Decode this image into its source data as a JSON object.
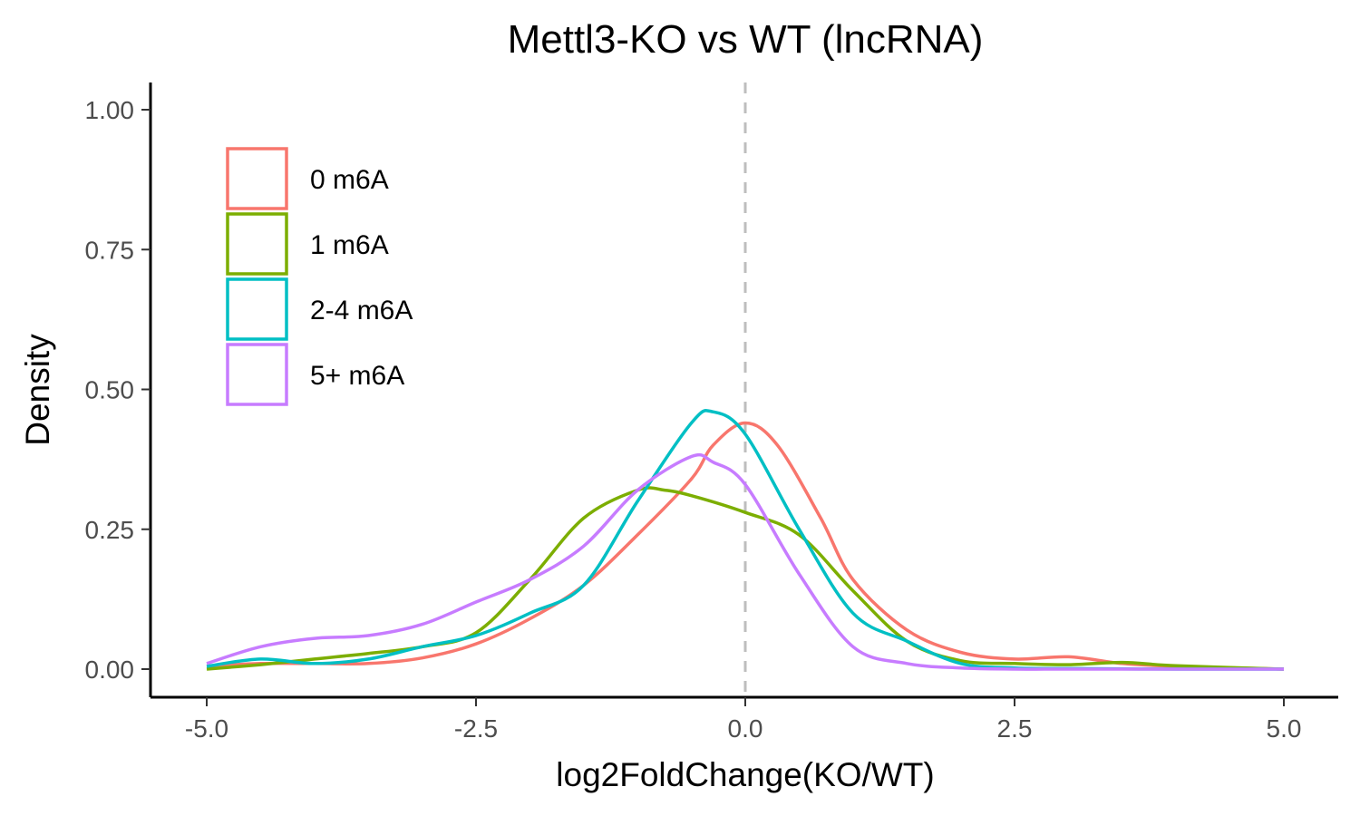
{
  "chart_data": {
    "type": "line",
    "subtype": "density",
    "title": "Mettl3-KO vs WT (lncRNA)",
    "xlabel": "log2FoldChange(KO/WT)",
    "ylabel": "Density",
    "xlim": [
      -5.0,
      5.0
    ],
    "ylim": [
      0,
      1.0
    ],
    "x_ticks": [
      -5.0,
      -2.5,
      0.0,
      2.5,
      5.0
    ],
    "x_tick_labels": [
      "-5.0",
      "-2.5",
      "0.0",
      "2.5",
      "5.0"
    ],
    "y_ticks": [
      0,
      0.25,
      0.5,
      0.75,
      1.0
    ],
    "y_tick_labels": [
      "0.00",
      "0.25",
      "0.50",
      "0.75",
      "1.00"
    ],
    "grid": false,
    "legend_position": "top-left",
    "reference_line": {
      "x": 0.0,
      "style": "dashed",
      "color": "#bebebe"
    },
    "series": [
      {
        "name": "0 m6A",
        "color": "#F8766D",
        "x": [
          -5.0,
          -4.5,
          -4.0,
          -3.5,
          -3.0,
          -2.5,
          -2.0,
          -1.5,
          -1.0,
          -0.5,
          -0.3,
          0.0,
          0.3,
          0.7,
          1.0,
          1.5,
          2.0,
          2.5,
          3.0,
          3.5,
          4.0,
          5.0
        ],
        "y": [
          0.005,
          0.01,
          0.01,
          0.01,
          0.02,
          0.045,
          0.09,
          0.15,
          0.24,
          0.34,
          0.4,
          0.44,
          0.4,
          0.27,
          0.16,
          0.07,
          0.03,
          0.018,
          0.022,
          0.01,
          0.005,
          0.0
        ]
      },
      {
        "name": "1 m6A",
        "color": "#7CAE00",
        "x": [
          -5.0,
          -4.5,
          -4.0,
          -3.5,
          -3.0,
          -2.5,
          -2.0,
          -1.5,
          -1.0,
          -0.75,
          -0.5,
          0.0,
          0.5,
          1.0,
          1.5,
          2.0,
          2.5,
          3.0,
          3.5,
          4.0,
          5.0
        ],
        "y": [
          0.0,
          0.008,
          0.018,
          0.028,
          0.04,
          0.065,
          0.16,
          0.27,
          0.32,
          0.32,
          0.31,
          0.28,
          0.24,
          0.14,
          0.05,
          0.015,
          0.01,
          0.008,
          0.012,
          0.006,
          0.0
        ]
      },
      {
        "name": "2-4 m6A",
        "color": "#00BFC4",
        "x": [
          -5.0,
          -4.5,
          -4.0,
          -3.5,
          -3.0,
          -2.5,
          -2.0,
          -1.5,
          -1.0,
          -0.5,
          -0.3,
          0.0,
          0.5,
          1.0,
          1.5,
          2.0,
          2.5,
          3.0,
          4.0,
          5.0
        ],
        "y": [
          0.005,
          0.018,
          0.01,
          0.018,
          0.04,
          0.06,
          0.1,
          0.15,
          0.3,
          0.44,
          0.46,
          0.42,
          0.25,
          0.1,
          0.05,
          0.01,
          0.002,
          0.001,
          0.0,
          0.0
        ]
      },
      {
        "name": "5+ m6A",
        "color": "#C77CFF",
        "x": [
          -5.0,
          -4.5,
          -4.0,
          -3.5,
          -3.0,
          -2.5,
          -2.0,
          -1.5,
          -1.0,
          -0.5,
          -0.3,
          0.0,
          0.5,
          1.0,
          1.5,
          2.0,
          2.5,
          3.0,
          4.0,
          5.0
        ],
        "y": [
          0.01,
          0.04,
          0.055,
          0.06,
          0.08,
          0.12,
          0.16,
          0.22,
          0.32,
          0.38,
          0.37,
          0.33,
          0.17,
          0.04,
          0.01,
          0.002,
          0.0,
          0.0,
          0.0,
          0.0
        ]
      }
    ]
  }
}
